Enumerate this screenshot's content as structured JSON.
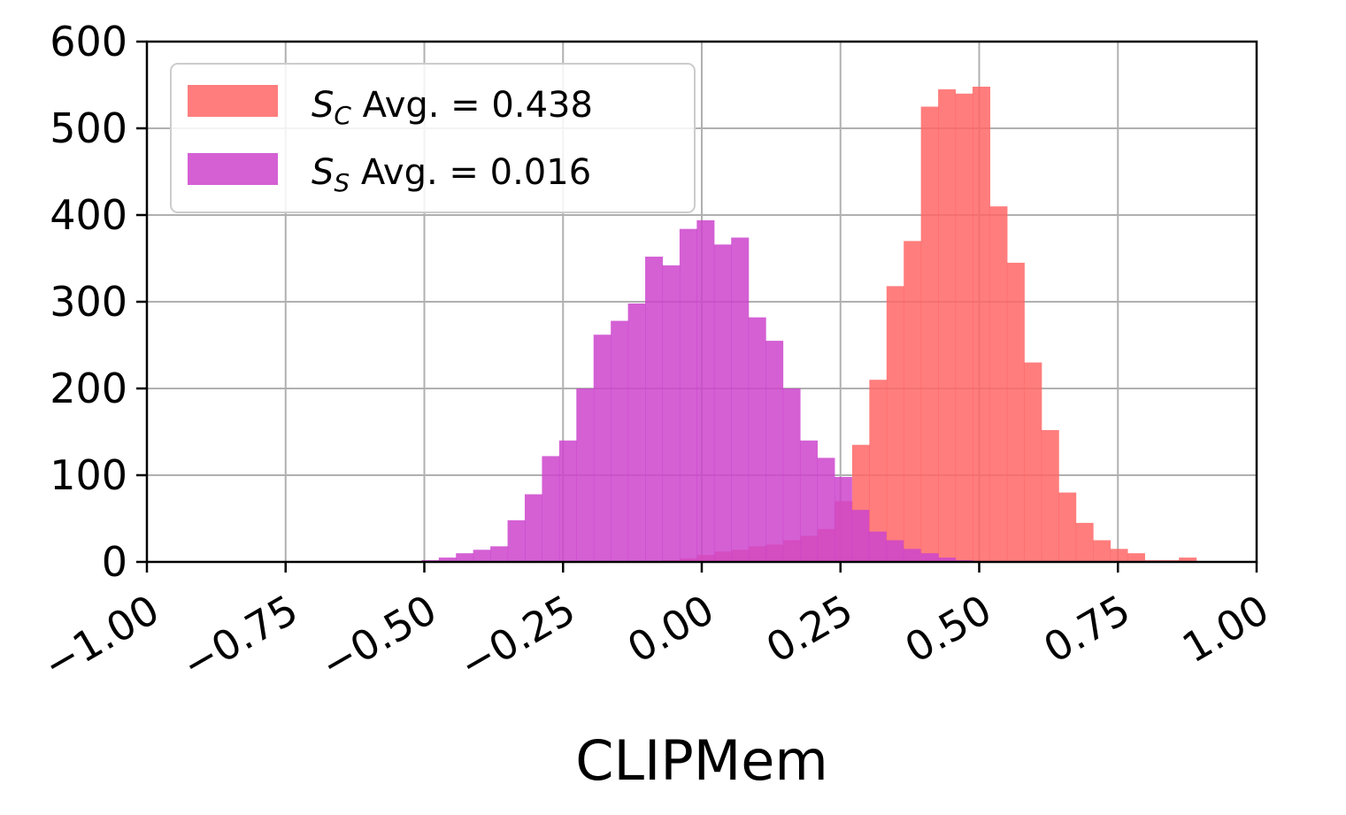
{
  "chart_data": {
    "type": "histogram",
    "title": "",
    "xlabel": "CLIPMem",
    "ylabel": "",
    "xlim": [
      -1.0,
      1.0
    ],
    "ylim": [
      0,
      600
    ],
    "xticks": [
      "−1.00",
      "−0.75",
      "−0.50",
      "−0.25",
      "0.00",
      "0.25",
      "0.50",
      "0.75",
      "1.00"
    ],
    "yticks": [
      "0",
      "100",
      "200",
      "300",
      "400",
      "500",
      "600"
    ],
    "grid": true,
    "legend_position": "top-left",
    "bin_width": 0.031,
    "series": [
      {
        "name": "S_C Avg. = 0.438",
        "legend_symbol": "S",
        "legend_subscript": "C",
        "legend_rest": " Avg. = 0.438",
        "color": "#ff6666",
        "bin_starts": [
          -0.101,
          -0.07,
          -0.039,
          -0.008,
          0.023,
          0.054,
          0.085,
          0.116,
          0.147,
          0.178,
          0.209,
          0.24,
          0.271,
          0.302,
          0.333,
          0.364,
          0.395,
          0.426,
          0.457,
          0.488,
          0.519,
          0.55,
          0.581,
          0.612,
          0.643,
          0.674,
          0.705,
          0.736,
          0.767,
          0.798,
          0.829,
          0.86
        ],
        "values": [
          1,
          2,
          4,
          8,
          12,
          14,
          18,
          20,
          25,
          30,
          38,
          70,
          135,
          210,
          318,
          370,
          525,
          545,
          540,
          548,
          410,
          345,
          230,
          152,
          80,
          45,
          25,
          15,
          10,
          2,
          2,
          5
        ]
      },
      {
        "name": "S_S Avg. = 0.016",
        "legend_symbol": "S",
        "legend_subscript": "S",
        "legend_rest": " Avg. = 0.016",
        "color": "#cc44cc",
        "bin_starts": [
          -0.505,
          -0.474,
          -0.443,
          -0.412,
          -0.381,
          -0.35,
          -0.319,
          -0.288,
          -0.257,
          -0.226,
          -0.195,
          -0.164,
          -0.133,
          -0.102,
          -0.071,
          -0.04,
          -0.009,
          0.022,
          0.053,
          0.084,
          0.115,
          0.146,
          0.177,
          0.208,
          0.239,
          0.27,
          0.301,
          0.332,
          0.363,
          0.395,
          0.426,
          0.457
        ],
        "values": [
          2,
          5,
          10,
          14,
          18,
          48,
          78,
          122,
          140,
          200,
          262,
          278,
          298,
          352,
          342,
          384,
          394,
          366,
          374,
          282,
          255,
          200,
          140,
          120,
          98,
          60,
          35,
          25,
          15,
          10,
          5,
          2
        ]
      }
    ]
  }
}
